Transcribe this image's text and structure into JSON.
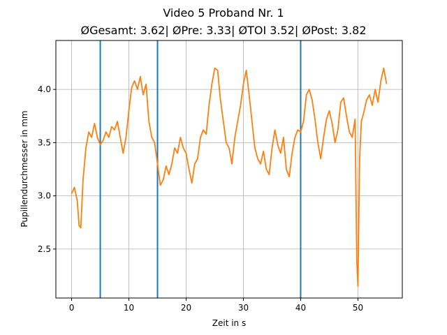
{
  "chart_data": {
    "type": "line",
    "title": "Video 5 Proband Nr. 1",
    "subtitle": "ØGesamt: 3.62| ØPre: 3.33| ØTOI 3.52| ØPost: 3.82",
    "xlabel": "Zeit in s",
    "ylabel": "Pupillendurchmesser in mm",
    "xlim": [
      -2.75,
      57.75
    ],
    "ylim": [
      2.04,
      4.46
    ],
    "xticks": [
      0,
      10,
      20,
      30,
      40,
      50
    ],
    "yticks": [
      2.5,
      3.0,
      3.5,
      4.0
    ],
    "ytick_labels": [
      "2.5",
      "3.0",
      "3.5",
      "4.0"
    ],
    "grid": true,
    "vlines": [
      5,
      15,
      40
    ],
    "vline_color": "#1f77b4",
    "series": [
      {
        "name": "Pupillendurchmesser",
        "color": "#ff7f0e",
        "x": [
          0,
          0.5,
          1,
          1.3,
          1.6,
          2.0,
          2.5,
          3.0,
          3.5,
          4.0,
          4.5,
          5.0,
          5.5,
          6.0,
          6.5,
          7.0,
          7.5,
          8.0,
          8.5,
          9.0,
          9.5,
          10.0,
          10.5,
          11.0,
          11.5,
          12.0,
          12.5,
          13.0,
          13.5,
          14.0,
          14.5,
          15.0,
          15.5,
          16.0,
          16.5,
          17.0,
          17.5,
          18.0,
          18.5,
          19.0,
          19.5,
          20.0,
          20.5,
          21.0,
          21.5,
          22.0,
          22.5,
          23.0,
          23.5,
          24.0,
          24.5,
          25.0,
          25.5,
          26.0,
          26.5,
          27.0,
          27.5,
          28.0,
          28.5,
          29.0,
          29.5,
          30.0,
          30.5,
          31.0,
          31.5,
          32.0,
          32.5,
          33.0,
          33.5,
          34.0,
          34.5,
          35.0,
          35.5,
          36.0,
          36.5,
          37.0,
          37.5,
          38.0,
          38.5,
          39.0,
          39.5,
          40.0,
          40.5,
          41.0,
          41.5,
          42.0,
          42.5,
          43.0,
          43.5,
          44.0,
          44.5,
          45.0,
          45.5,
          46.0,
          46.5,
          47.0,
          47.5,
          48.0,
          48.5,
          49.0,
          49.5,
          49.8,
          50.0,
          50.3,
          50.6,
          51.0,
          51.5,
          52.0,
          52.5,
          53.0,
          53.5,
          54.0,
          54.5,
          55.0
        ],
        "values": [
          3.02,
          3.08,
          2.95,
          2.72,
          2.7,
          3.15,
          3.45,
          3.6,
          3.55,
          3.68,
          3.55,
          3.48,
          3.52,
          3.6,
          3.55,
          3.65,
          3.62,
          3.7,
          3.55,
          3.4,
          3.55,
          3.8,
          4.02,
          4.08,
          4.0,
          4.12,
          3.95,
          4.05,
          3.7,
          3.55,
          3.5,
          3.3,
          3.1,
          3.15,
          3.28,
          3.2,
          3.3,
          3.45,
          3.4,
          3.55,
          3.45,
          3.4,
          3.25,
          3.12,
          3.3,
          3.35,
          3.55,
          3.62,
          3.58,
          3.85,
          4.05,
          4.2,
          4.18,
          3.9,
          3.7,
          3.5,
          3.45,
          3.3,
          3.55,
          3.7,
          3.85,
          4.05,
          4.18,
          3.95,
          3.7,
          3.45,
          3.35,
          3.3,
          3.42,
          3.25,
          3.2,
          3.45,
          3.62,
          3.48,
          3.4,
          3.55,
          3.25,
          3.18,
          3.4,
          3.55,
          3.62,
          3.6,
          3.7,
          3.95,
          4.0,
          3.9,
          3.72,
          3.5,
          3.35,
          3.55,
          3.72,
          3.8,
          3.68,
          3.5,
          3.62,
          3.88,
          3.92,
          3.75,
          3.6,
          3.55,
          3.72,
          2.4,
          2.15,
          3.35,
          3.7,
          3.78,
          3.9,
          3.95,
          3.85,
          4.0,
          3.88,
          4.08,
          4.2,
          4.05
        ]
      }
    ]
  }
}
